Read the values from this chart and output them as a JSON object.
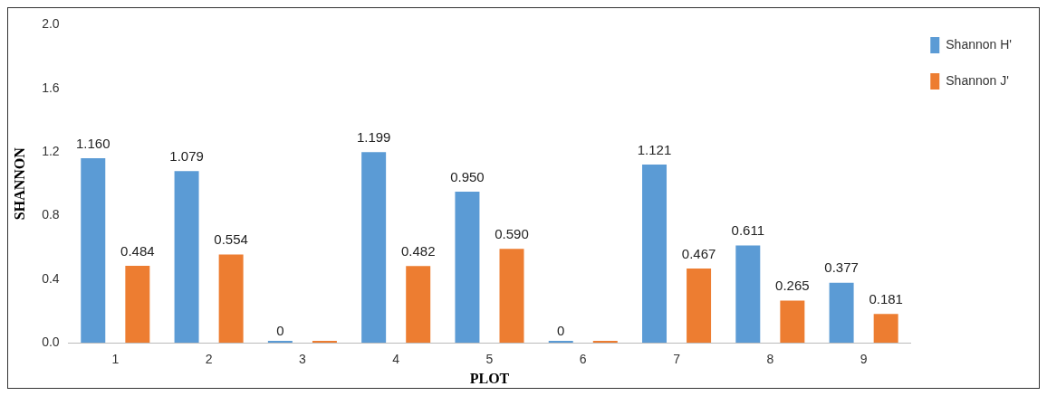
{
  "chart_data": {
    "type": "bar",
    "xlabel": "PLOT",
    "ylabel": "SHANNON",
    "categories": [
      "1",
      "2",
      "3",
      "4",
      "5",
      "6",
      "7",
      "8",
      "9"
    ],
    "series": [
      {
        "name": "Shannon H'",
        "color": "#5b9bd5",
        "values": [
          1.16,
          1.079,
          0,
          1.199,
          0.95,
          0,
          1.121,
          0.611,
          0.377
        ],
        "value_labels": [
          "1.160",
          "1.079",
          "0",
          "1.199",
          "0.950",
          "0",
          "1.121",
          "0.611",
          "0.377"
        ]
      },
      {
        "name": "Shannon J'",
        "color": "#ed7d31",
        "values": [
          0.484,
          0.554,
          0,
          0.482,
          0.59,
          0,
          0.467,
          0.265,
          0.181
        ],
        "value_labels": [
          "0.484",
          "0.554",
          null,
          "0.482",
          "0.590",
          null,
          "0.467",
          "0.265",
          "0.181"
        ]
      }
    ],
    "ylim": [
      0,
      2
    ],
    "yticks": [
      {
        "value": 0,
        "label": "0.0"
      },
      {
        "value": 0.4,
        "label": "0.4"
      },
      {
        "value": 0.8,
        "label": "0.8"
      },
      {
        "value": 1.2,
        "label": "1.2"
      },
      {
        "value": 1.6,
        "label": "1.6"
      },
      {
        "value": 2,
        "label": "2.0"
      }
    ],
    "grid": false,
    "legend": "top right"
  }
}
